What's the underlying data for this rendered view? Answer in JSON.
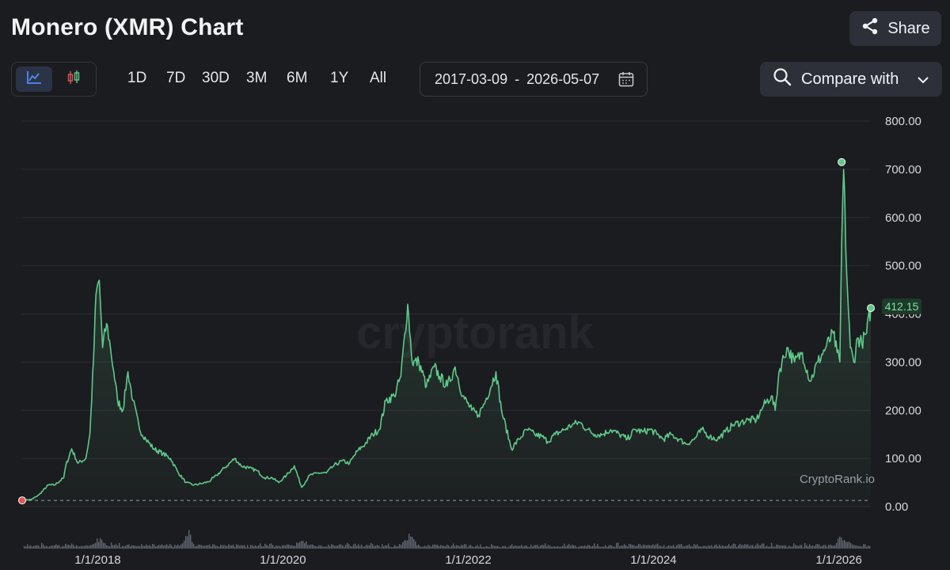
{
  "header": {
    "title": "Monero (XMR) Chart",
    "share_label": "Share"
  },
  "toolbar": {
    "chart_types": [
      {
        "icon": "line-chart-icon",
        "active": true
      },
      {
        "icon": "candlestick-icon",
        "active": false
      }
    ],
    "ranges": [
      "1D",
      "7D",
      "30D",
      "3M",
      "6M",
      "1Y",
      "All"
    ],
    "date_from": "2017-03-09",
    "date_separator": "-",
    "date_to": "2026-05-07",
    "compare_label": "Compare with"
  },
  "colors": {
    "line": "#5fc98a",
    "up": "#5fc98a",
    "down": "#e05656",
    "volume": "#7a7f8f",
    "background": "#1b1c1f"
  },
  "chart_data": {
    "type": "line",
    "title": "",
    "xlabel": "",
    "ylabel": "",
    "x_ticks": [
      "1/1/2018",
      "1/1/2020",
      "1/1/2022",
      "1/1/2024",
      "1/1/2026"
    ],
    "y_ticks": [
      "0.00",
      "100.00",
      "200.00",
      "300.00",
      "400.00",
      "500.00",
      "600.00",
      "700.00",
      "800.00"
    ],
    "ylim": [
      0,
      800
    ],
    "xlim": [
      "2017-03-09",
      "2026-05-07"
    ],
    "grid": true,
    "current_price_label": "412.15",
    "watermark": "cryptorank",
    "source_label": "CryptoRank.io",
    "series": [
      {
        "values_x": [
          "2017-03-09",
          "2017-04-15",
          "2017-05-15",
          "2017-06-20",
          "2017-07-15",
          "2017-08-20",
          "2017-08-28",
          "2017-09-20",
          "2017-10-15",
          "2017-11-15",
          "2017-12-01",
          "2017-12-15",
          "2017-12-25",
          "2018-01-07",
          "2018-01-20",
          "2018-02-05",
          "2018-02-20",
          "2018-03-05",
          "2018-03-20",
          "2018-04-10",
          "2018-04-30",
          "2018-05-20",
          "2018-06-15",
          "2018-07-10",
          "2018-08-10",
          "2018-09-15",
          "2018-10-15",
          "2018-11-15",
          "2018-12-15",
          "2019-01-15",
          "2019-02-15",
          "2019-03-15",
          "2019-04-15",
          "2019-05-15",
          "2019-06-25",
          "2019-07-20",
          "2019-08-20",
          "2019-09-20",
          "2019-10-20",
          "2019-11-20",
          "2019-12-15",
          "2020-01-15",
          "2020-02-15",
          "2020-03-15",
          "2020-04-15",
          "2020-05-20",
          "2020-06-20",
          "2020-07-20",
          "2020-08-20",
          "2020-09-20",
          "2020-10-20",
          "2020-11-20",
          "2020-12-20",
          "2021-01-15",
          "2021-02-10",
          "2021-03-15",
          "2021-04-10",
          "2021-05-07",
          "2021-05-25",
          "2021-06-20",
          "2021-07-20",
          "2021-08-20",
          "2021-09-10",
          "2021-10-10",
          "2021-11-10",
          "2021-12-10",
          "2022-01-15",
          "2022-02-10",
          "2022-03-10",
          "2022-04-20",
          "2022-05-12",
          "2022-06-20",
          "2022-07-20",
          "2022-08-20",
          "2022-09-20",
          "2022-10-20",
          "2022-11-10",
          "2022-12-10",
          "2023-01-15",
          "2023-02-15",
          "2023-03-15",
          "2023-04-15",
          "2023-05-15",
          "2023-06-15",
          "2023-07-15",
          "2023-08-20",
          "2023-09-20",
          "2023-10-20",
          "2023-11-20",
          "2023-12-20",
          "2024-01-15",
          "2024-02-10",
          "2024-03-10",
          "2024-04-10",
          "2024-05-10",
          "2024-06-10",
          "2024-07-10",
          "2024-08-10",
          "2024-09-10",
          "2024-10-10",
          "2024-11-10",
          "2024-12-10",
          "2025-01-10",
          "2025-02-10",
          "2025-03-10",
          "2025-04-10",
          "2025-04-25",
          "2025-05-10",
          "2025-06-10",
          "2025-07-10",
          "2025-08-10",
          "2025-09-10",
          "2025-10-10",
          "2025-11-10",
          "2025-12-10",
          "2025-12-25",
          "2026-01-05",
          "2026-01-12",
          "2026-01-20",
          "2026-02-01",
          "2026-02-15",
          "2026-03-01",
          "2026-03-15",
          "2026-04-01",
          "2026-04-20",
          "2026-05-07"
        ],
        "values_y": [
          13,
          15,
          25,
          45,
          45,
          60,
          85,
          120,
          90,
          100,
          150,
          300,
          440,
          470,
          330,
          380,
          330,
          280,
          220,
          200,
          280,
          220,
          160,
          140,
          120,
          110,
          100,
          70,
          50,
          45,
          48,
          52,
          65,
          80,
          100,
          85,
          80,
          75,
          60,
          60,
          50,
          65,
          85,
          40,
          65,
          70,
          70,
          85,
          95,
          90,
          115,
          130,
          150,
          160,
          220,
          230,
          270,
          420,
          300,
          300,
          250,
          290,
          270,
          250,
          290,
          230,
          200,
          190,
          220,
          280,
          200,
          120,
          140,
          160,
          150,
          145,
          135,
          150,
          160,
          170,
          175,
          160,
          150,
          150,
          160,
          150,
          140,
          160,
          155,
          160,
          150,
          140,
          150,
          140,
          130,
          140,
          160,
          145,
          140,
          155,
          170,
          175,
          180,
          180,
          210,
          230,
          200,
          280,
          330,
          300,
          320,
          260,
          300,
          330,
          360,
          320,
          300,
          550,
          700,
          480,
          330,
          300,
          350,
          340,
          360,
          412
        ],
        "points": "dense-price-trace"
      }
    ],
    "start_marker": {
      "date": "2017-03-09",
      "value": 13
    },
    "peak_marker": {
      "date": "2026-01-12",
      "value": 715
    },
    "last_marker": {
      "date": "2026-05-07",
      "value": 412.15
    },
    "reference_line_value": 13
  }
}
